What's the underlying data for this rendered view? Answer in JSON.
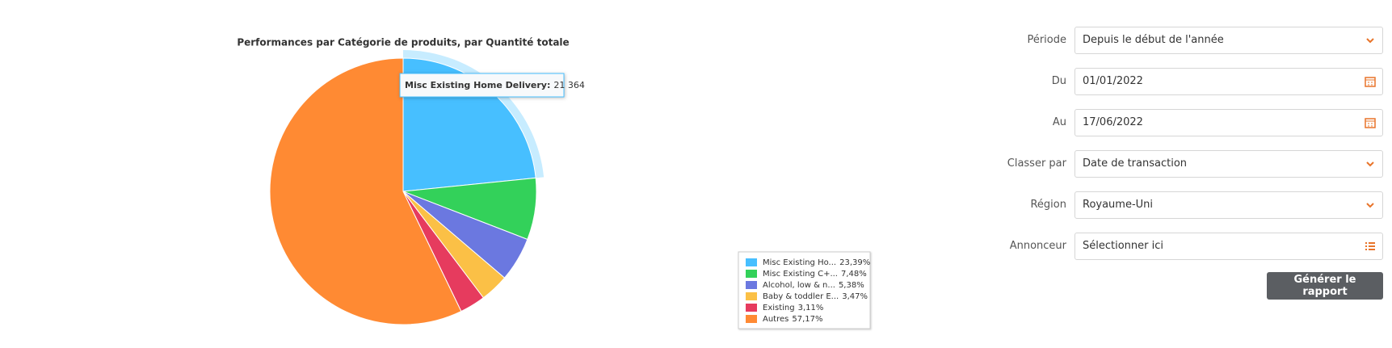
{
  "chart_data": {
    "type": "pie",
    "title": "Performances par Catégorie de produits, par Quantité totale",
    "categories": [
      "Misc Existing Ho...",
      "Misc Existing C+...",
      "Alcohol, low & n...",
      "Baby & toddler E...",
      "Existing",
      "Autres"
    ],
    "values": [
      23.39,
      7.48,
      5.38,
      3.47,
      3.11,
      57.17
    ],
    "value_labels": [
      "23,39%",
      "7,48%",
      "5,38%",
      "3,47%",
      "3,11%",
      "57,17%"
    ],
    "colors": [
      "#47bfff",
      "#33d15a",
      "#6b78e0",
      "#fbc046",
      "#e63b5e",
      "#ff8a33"
    ],
    "tooltip": {
      "label": "Misc Existing Home Delivery:",
      "value": {
        "value": 21364,
        "label": "21 364"
      }
    }
  },
  "form": {
    "fields": [
      {
        "label": "Période",
        "value": "Depuis le début de l'année"
      },
      {
        "label": "Du",
        "value": "01/01/2022"
      },
      {
        "label": "Au",
        "value": "17/06/2022"
      },
      {
        "label": "Classer par",
        "value": "Date de transaction"
      },
      {
        "label": "Région",
        "value": "Royaume-Uni"
      },
      {
        "label": "Annonceur",
        "value": "Sélectionner ici"
      }
    ],
    "button": "Générer le rapport"
  }
}
